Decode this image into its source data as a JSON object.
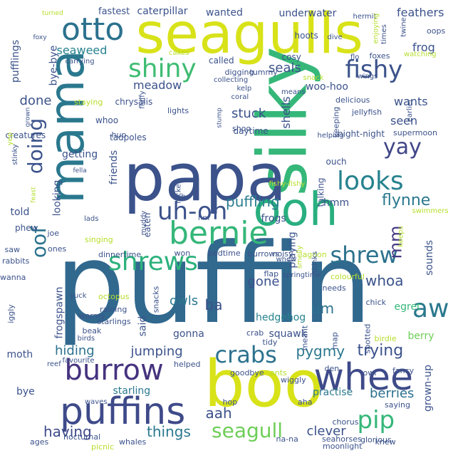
{
  "word_cloud": {
    "words": [
      {
        "text": "puffin",
        "color": "#31688e"
      },
      {
        "text": "silky",
        "color": "#35b779"
      },
      {
        "text": "boo",
        "color": "#d8e219"
      },
      {
        "text": "papa",
        "color": "#3b528b"
      },
      {
        "text": "seagulls",
        "color": "#d8e219"
      },
      {
        "text": "mama",
        "color": "#2a788e"
      },
      {
        "text": "ooh",
        "color": "#29af7f"
      },
      {
        "text": "puffins",
        "color": "#3e4a89"
      },
      {
        "text": "whee",
        "color": "#3e4a89"
      },
      {
        "text": "burrow",
        "color": "#46337f"
      },
      {
        "text": "bernie",
        "color": "#35b779"
      },
      {
        "text": "otto",
        "color": "#2c728e"
      },
      {
        "text": "shiny",
        "color": "#3fbc73"
      },
      {
        "text": "fishy",
        "color": "#3b528b"
      },
      {
        "text": "aw",
        "color": "#2a788e"
      },
      {
        "text": "looks",
        "color": "#26828e"
      },
      {
        "text": "uh-oh",
        "color": "#3b528b"
      },
      {
        "text": "shrews",
        "color": "#2db27d"
      },
      {
        "text": "shrew",
        "color": "#2c728e"
      },
      {
        "text": "crabs",
        "color": "#2c728e"
      },
      {
        "text": "yay",
        "color": "#404688"
      },
      {
        "text": "pip",
        "color": "#35b779"
      },
      {
        "text": "doing",
        "color": "#3b528b"
      },
      {
        "text": "oof",
        "color": "#2c728e"
      },
      {
        "text": "seagull",
        "color": "#6ece58"
      },
      {
        "text": "mm",
        "color": "#443a83"
      },
      {
        "text": "puffling",
        "color": "#287d8e"
      },
      {
        "text": "trying",
        "color": "#3b528b"
      },
      {
        "text": "pygmy",
        "color": "#2a788e"
      },
      {
        "text": "whoa",
        "color": "#3b528b"
      },
      {
        "text": "flynne",
        "color": "#2a788e"
      },
      {
        "text": "um",
        "color": "#2c728e"
      },
      {
        "text": "hiding",
        "color": "#2c728e"
      },
      {
        "text": "jumping",
        "color": "#3b528b"
      },
      {
        "text": "having",
        "color": "#3e4a89"
      },
      {
        "text": "things",
        "color": "#2a788e"
      },
      {
        "text": "aah",
        "color": "#3b528b"
      },
      {
        "text": "berries",
        "color": "#2c728e"
      },
      {
        "text": "clever",
        "color": "#3b528b"
      },
      {
        "text": "gone",
        "color": "#3b528b"
      },
      {
        "text": "owls",
        "color": "#2a788e"
      },
      {
        "text": "ba",
        "color": "#3b528b"
      },
      {
        "text": "done",
        "color": "#3b528b"
      },
      {
        "text": "stuck",
        "color": "#3b528b"
      },
      {
        "text": "seals",
        "color": "#3b528b"
      },
      {
        "text": "shells",
        "color": "#3b528b"
      },
      {
        "text": "seen",
        "color": "#3b528b"
      },
      {
        "text": "wants",
        "color": "#3b528b"
      },
      {
        "text": "frog",
        "color": "#3b528b"
      },
      {
        "text": "feathers",
        "color": "#3b528b"
      },
      {
        "text": "underwater",
        "color": "#3b528b"
      },
      {
        "text": "wanted",
        "color": "#3b528b"
      },
      {
        "text": "caterpillar",
        "color": "#3b528b"
      },
      {
        "text": "fastest",
        "color": "#3b528b"
      },
      {
        "text": "seaweed",
        "color": "#26828e"
      },
      {
        "text": "bye-bye",
        "color": "#3b528b"
      },
      {
        "text": "pufflings",
        "color": "#3b528b"
      },
      {
        "text": "meadow",
        "color": "#3b528b"
      },
      {
        "text": "woo-hoo",
        "color": "#3b528b"
      },
      {
        "text": "looking",
        "color": "#3b528b"
      },
      {
        "text": "friends",
        "color": "#3b528b"
      },
      {
        "text": "told",
        "color": "#3b528b"
      },
      {
        "text": "hmm",
        "color": "#3b528b"
      },
      {
        "text": "frogs",
        "color": "#3b528b"
      },
      {
        "text": "playing",
        "color": "#3b528b"
      },
      {
        "text": "sounds",
        "color": "#3b528b"
      },
      {
        "text": "hedgehog",
        "color": "#26828e"
      },
      {
        "text": "berry",
        "color": "#6ece58"
      },
      {
        "text": "egret",
        "color": "#35b779"
      },
      {
        "text": "grown-up",
        "color": "#3b528b"
      },
      {
        "text": "practise",
        "color": "#2a788e"
      },
      {
        "text": "gonna",
        "color": "#3b528b"
      },
      {
        "text": "squawk",
        "color": "#3b528b"
      },
      {
        "text": "said",
        "color": "#3b528b"
      },
      {
        "text": "frogspawn",
        "color": "#3b528b"
      },
      {
        "text": "starling",
        "color": "#2a788e"
      },
      {
        "text": "moth",
        "color": "#3b528b"
      },
      {
        "text": "bye",
        "color": "#3b528b"
      },
      {
        "text": "getting",
        "color": "#3b528b"
      },
      {
        "text": "creatures",
        "color": "#3b528b"
      },
      {
        "text": "tadpoles",
        "color": "#3b528b"
      },
      {
        "text": "whoo",
        "color": "#3b528b"
      },
      {
        "text": "daytime",
        "color": "#3b528b"
      },
      {
        "text": "chrysalis",
        "color": "#3b528b"
      },
      {
        "text": "fluffy",
        "color": "#3b528b"
      },
      {
        "text": "night-night",
        "color": "#3b528b"
      },
      {
        "text": "jellyfish",
        "color": "#3b528b"
      },
      {
        "text": "delicious",
        "color": "#3b528b"
      },
      {
        "text": "supermoon",
        "color": "#3b528b"
      },
      {
        "text": "called",
        "color": "#3b528b"
      },
      {
        "text": "hoots",
        "color": "#3b528b"
      },
      {
        "text": "cosy",
        "color": "#3b528b"
      },
      {
        "text": "foxes",
        "color": "#3b528b"
      },
      {
        "text": "flo",
        "color": "#3b528b"
      },
      {
        "text": "dive",
        "color": "#3b528b"
      },
      {
        "text": "oops",
        "color": "#3b528b"
      },
      {
        "text": "digging",
        "color": "#3b528b"
      },
      {
        "text": "tummy",
        "color": "#3b528b"
      },
      {
        "text": "shoo",
        "color": "#3b528b"
      },
      {
        "text": "lights",
        "color": "#3b528b"
      },
      {
        "text": "hup",
        "color": "#3b528b"
      },
      {
        "text": "ouch",
        "color": "#3b528b"
      },
      {
        "text": "talking",
        "color": "#3b528b"
      },
      {
        "text": "snacks",
        "color": "#3b528b"
      },
      {
        "text": "crab",
        "color": "#3b528b"
      },
      {
        "text": "noisy",
        "color": "#3b528b"
      },
      {
        "text": "flap",
        "color": "#3b528b"
      },
      {
        "text": "burrows",
        "color": "#3b528b"
      },
      {
        "text": "needs",
        "color": "#3b528b"
      },
      {
        "text": "chick",
        "color": "#3b528b"
      },
      {
        "text": "beak",
        "color": "#3b528b"
      },
      {
        "text": "phew",
        "color": "#3b528b"
      },
      {
        "text": "singing",
        "color": "#b5de2b"
      },
      {
        "text": "rabbits",
        "color": "#3b528b"
      },
      {
        "text": "saw",
        "color": "#3b528b"
      },
      {
        "text": "won",
        "color": "#3b528b"
      },
      {
        "text": "bedtime",
        "color": "#3b528b"
      },
      {
        "text": "dinnertime",
        "color": "#3b528b"
      },
      {
        "text": "colourful",
        "color": "#b5de2b"
      },
      {
        "text": "lagoon",
        "color": "#b5de2b"
      },
      {
        "text": "den",
        "color": "#3b528b"
      },
      {
        "text": "wiggly",
        "color": "#3b528b"
      },
      {
        "text": "saying",
        "color": "#3b528b"
      },
      {
        "text": "chorus",
        "color": "#3b528b"
      },
      {
        "text": "glorious",
        "color": "#3b528b"
      },
      {
        "text": "seahorses",
        "color": "#3b528b"
      },
      {
        "text": "moonlight",
        "color": "#3b528b"
      },
      {
        "text": "na-na",
        "color": "#3b528b"
      },
      {
        "text": "whales",
        "color": "#3b528b"
      },
      {
        "text": "nocturnal",
        "color": "#3b528b"
      },
      {
        "text": "picnic",
        "color": "#b5de2b"
      },
      {
        "text": "ages",
        "color": "#3b528b"
      },
      {
        "text": "favourite",
        "color": "#3b528b"
      },
      {
        "text": "reef",
        "color": "#3b528b"
      },
      {
        "text": "hop",
        "color": "#3b528b"
      },
      {
        "text": "aha",
        "color": "#3b528b"
      },
      {
        "text": "ants",
        "color": "#b5de2b"
      },
      {
        "text": "goodbye",
        "color": "#3b528b"
      },
      {
        "text": "knew",
        "color": "#3b528b"
      },
      {
        "text": "waves",
        "color": "#3b528b"
      },
      {
        "text": "fancy",
        "color": "#3b528b"
      },
      {
        "text": "owl",
        "color": "#3b528b"
      },
      {
        "text": "birdie",
        "color": "#b5de2b"
      },
      {
        "text": "spotted",
        "color": "#3b528b"
      },
      {
        "text": "map",
        "color": "#3b528b"
      },
      {
        "text": "meant",
        "color": "#3b528b"
      },
      {
        "text": "tidy",
        "color": "#3b528b"
      },
      {
        "text": "helped",
        "color": "#3b528b"
      },
      {
        "text": "raining",
        "color": "#3b528b"
      },
      {
        "text": "starlings",
        "color": "#3b528b"
      },
      {
        "text": "worms",
        "color": "#3b528b"
      },
      {
        "text": "birds",
        "color": "#3b528b"
      },
      {
        "text": "iggly",
        "color": "#3b528b"
      },
      {
        "text": "yuck",
        "color": "#3b528b"
      },
      {
        "text": "octopus",
        "color": "#b5de2b"
      },
      {
        "text": "wanna",
        "color": "#3b528b"
      },
      {
        "text": "ones",
        "color": "#3b528b"
      },
      {
        "text": "joe",
        "color": "#3b528b"
      },
      {
        "text": "lads",
        "color": "#3b528b"
      },
      {
        "text": "muddy",
        "color": "#3b528b"
      },
      {
        "text": "eaten",
        "color": "#3b528b"
      },
      {
        "text": "racket",
        "color": "#3b528b"
      },
      {
        "text": "sh",
        "color": "#3b528b"
      },
      {
        "text": "hm",
        "color": "#3b528b"
      },
      {
        "text": "fishy-fishy",
        "color": "#b5de2b"
      },
      {
        "text": "whew",
        "color": "#3b528b"
      },
      {
        "text": "springtime",
        "color": "#3b528b"
      },
      {
        "text": "smelly",
        "color": "#b5de2b"
      },
      {
        "text": "thinks",
        "color": "#3b528b"
      },
      {
        "text": "keeps",
        "color": "#b5de2b"
      },
      {
        "text": "swimmers",
        "color": "#b5de2b"
      },
      {
        "text": "feast",
        "color": "#b5de2b"
      },
      {
        "text": "stinky",
        "color": "#3b528b"
      },
      {
        "text": "yep",
        "color": "#b5de2b"
      },
      {
        "text": "fella",
        "color": "#3b528b"
      },
      {
        "text": "grown",
        "color": "#3b528b"
      },
      {
        "text": "staying",
        "color": "#b5de2b"
      },
      {
        "text": "carrying",
        "color": "#3b528b"
      },
      {
        "text": "cakes",
        "color": "#b5de2b"
      },
      {
        "text": "collecting",
        "color": "#3b528b"
      },
      {
        "text": "coral",
        "color": "#3b528b"
      },
      {
        "text": "kelp",
        "color": "#3b528b"
      },
      {
        "text": "earlier",
        "color": "#3b528b"
      },
      {
        "text": "snack",
        "color": "#b5de2b"
      },
      {
        "text": "watching",
        "color": "#b5de2b"
      },
      {
        "text": "wings",
        "color": "#3b528b"
      },
      {
        "text": "means",
        "color": "#3b528b"
      },
      {
        "text": "keeping",
        "color": "#3b528b"
      },
      {
        "text": "helping",
        "color": "#3b528b"
      },
      {
        "text": "stump",
        "color": "#3b528b"
      },
      {
        "text": "foxy",
        "color": "#3b528b"
      },
      {
        "text": "turned",
        "color": "#b5de2b"
      },
      {
        "text": "hermit",
        "color": "#3b528b"
      },
      {
        "text": "enjoying",
        "color": "#b5de2b"
      },
      {
        "text": "times",
        "color": "#3b528b"
      },
      {
        "text": "twine",
        "color": "#3b528b"
      },
      {
        "text": "likes",
        "color": "#3b528b"
      },
      {
        "text": "taking",
        "color": "#3b528b"
      },
      {
        "text": "puddle",
        "color": "#b5de2b"
      },
      {
        "text": "soon",
        "color": "#3b528b"
      }
    ]
  }
}
